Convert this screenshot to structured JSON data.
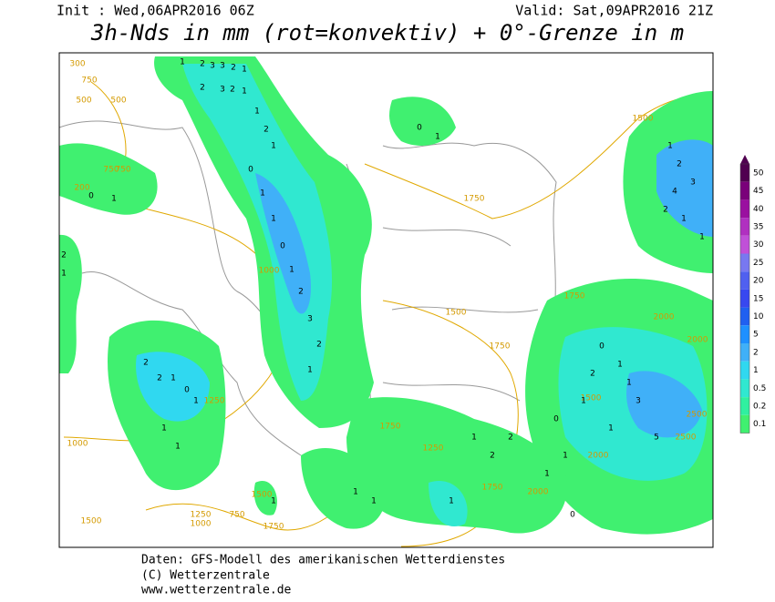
{
  "header": {
    "init": "Init : Wed,06APR2016 06Z",
    "valid": "Valid: Sat,09APR2016 21Z",
    "title": "3h-Nds in mm (rot=konvektiv) + 0°-Grenze in m"
  },
  "legend": {
    "labels": [
      50,
      45,
      40,
      35,
      30,
      25,
      20,
      15,
      10,
      5,
      2,
      1,
      0.5,
      0.2,
      0.1
    ],
    "colors": [
      "#500050",
      "#7a007a",
      "#9a10a0",
      "#b030c0",
      "#c050d8",
      "#7878f0",
      "#5060f0",
      "#3848f0",
      "#2060f0",
      "#1e90ff",
      "#40b0f8",
      "#30d8f0",
      "#30e8d0",
      "#30f0a0",
      "#40f070"
    ]
  },
  "map": {
    "contour_labels": [
      "300",
      "500",
      "750",
      "500",
      "750",
      "200",
      "750",
      "1000",
      "1000",
      "1250",
      "1500",
      "1750",
      "1750",
      "1500",
      "2000",
      "1750",
      "1750",
      "1500",
      "2000",
      "2500",
      "2500",
      "2000",
      "1750",
      "2000",
      "1250",
      "1500",
      "1750",
      "1000",
      "1250",
      "750",
      "1500"
    ],
    "cell_values": [
      "1",
      "2",
      "3",
      "3",
      "2",
      "1",
      "2",
      "3",
      "2",
      "1",
      "1",
      "2",
      "1",
      "0",
      "1",
      "1",
      "0",
      "1",
      "2",
      "3",
      "2",
      "1",
      "2",
      "2",
      "1",
      "0",
      "1",
      "1",
      "1",
      "2",
      "1",
      "0",
      "1",
      "1",
      "2",
      "3",
      "4",
      "2",
      "1",
      "1",
      "5",
      "1",
      "3",
      "1",
      "0",
      "1",
      "2",
      "1",
      "0",
      "1",
      "1",
      "2",
      "2",
      "1",
      "1",
      "0",
      "1",
      "1",
      "1",
      "1",
      "0"
    ]
  },
  "footer": {
    "line1": "Daten: GFS-Modell des amerikanischen Wetterdienstes",
    "line2": "(C) Wetterzentrale",
    "line3": "www.wetterzentrale.de"
  }
}
